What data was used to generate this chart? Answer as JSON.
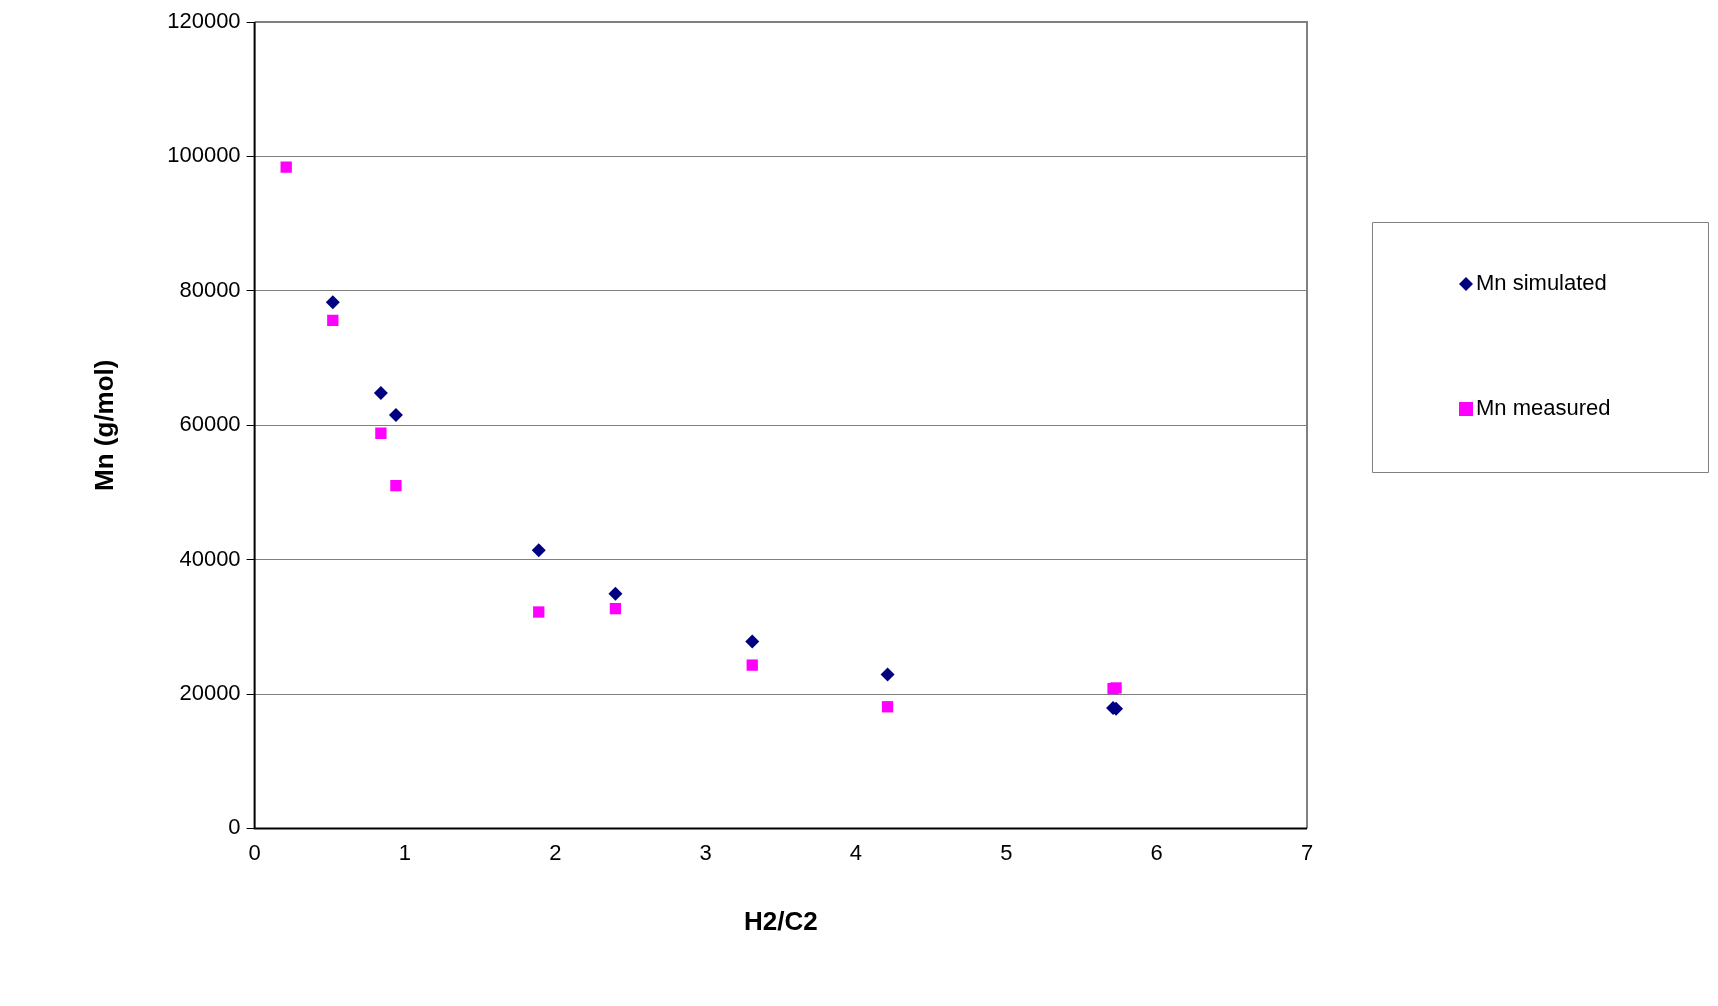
{
  "chart_data": {
    "type": "scatter",
    "xlabel": "H2/C2",
    "ylabel": "Mn (g/mol)",
    "xlim": [
      0,
      7
    ],
    "xticks": [
      0,
      1,
      2,
      3,
      4,
      5,
      6,
      7
    ],
    "ylim": [
      0,
      120000
    ],
    "yticks": [
      0,
      20000,
      40000,
      60000,
      80000,
      100000,
      120000
    ],
    "grid": "y",
    "legend": "right",
    "series": [
      {
        "name": "Mn simulated",
        "color": "#000080",
        "marker": "diamond",
        "x": [
          null,
          0.52,
          0.84,
          0.94,
          1.89,
          2.4,
          3.31,
          4.21,
          5.71,
          5.73
        ],
        "values": [
          null,
          78300,
          64800,
          61500,
          41400,
          34900,
          27800,
          22900,
          17900,
          17800
        ]
      },
      {
        "name": "Mn measured",
        "color": "#ff00ff",
        "marker": "square",
        "x": [
          0.21,
          0.52,
          0.84,
          0.94,
          1.89,
          2.4,
          3.31,
          4.21,
          5.71,
          5.73
        ],
        "values": [
          98400,
          75600,
          58800,
          51000,
          32200,
          32700,
          24300,
          18100,
          20800,
          20900
        ]
      }
    ]
  }
}
